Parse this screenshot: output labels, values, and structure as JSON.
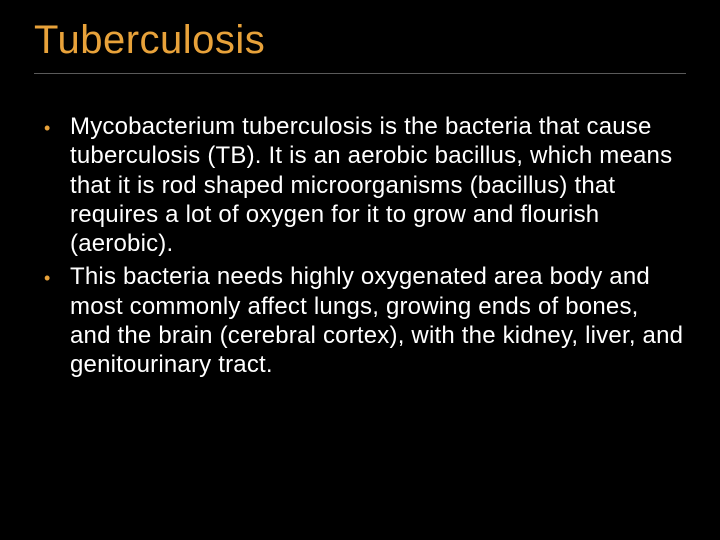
{
  "slide": {
    "title": "Tuberculosis",
    "title_color": "#e8a23a",
    "title_fontsize": 40,
    "background_color": "#000000",
    "divider_color": "#5a5a5a",
    "bullet_marker_color": "#e8a23a",
    "body_text_color": "#ffffff",
    "body_fontsize": 24,
    "bullets": [
      "Mycobacterium tuberculosis is the bacteria that cause tuberculosis (TB). It is an aerobic bacillus, which means that it is rod shaped microorganisms (bacillus) that requires a lot of oxygen for it to grow and flourish (aerobic).",
      "This bacteria needs highly oxygenated area body and most commonly affect lungs, growing ends of bones, and the brain (cerebral cortex), with the kidney, liver, and genitourinary tract."
    ]
  }
}
